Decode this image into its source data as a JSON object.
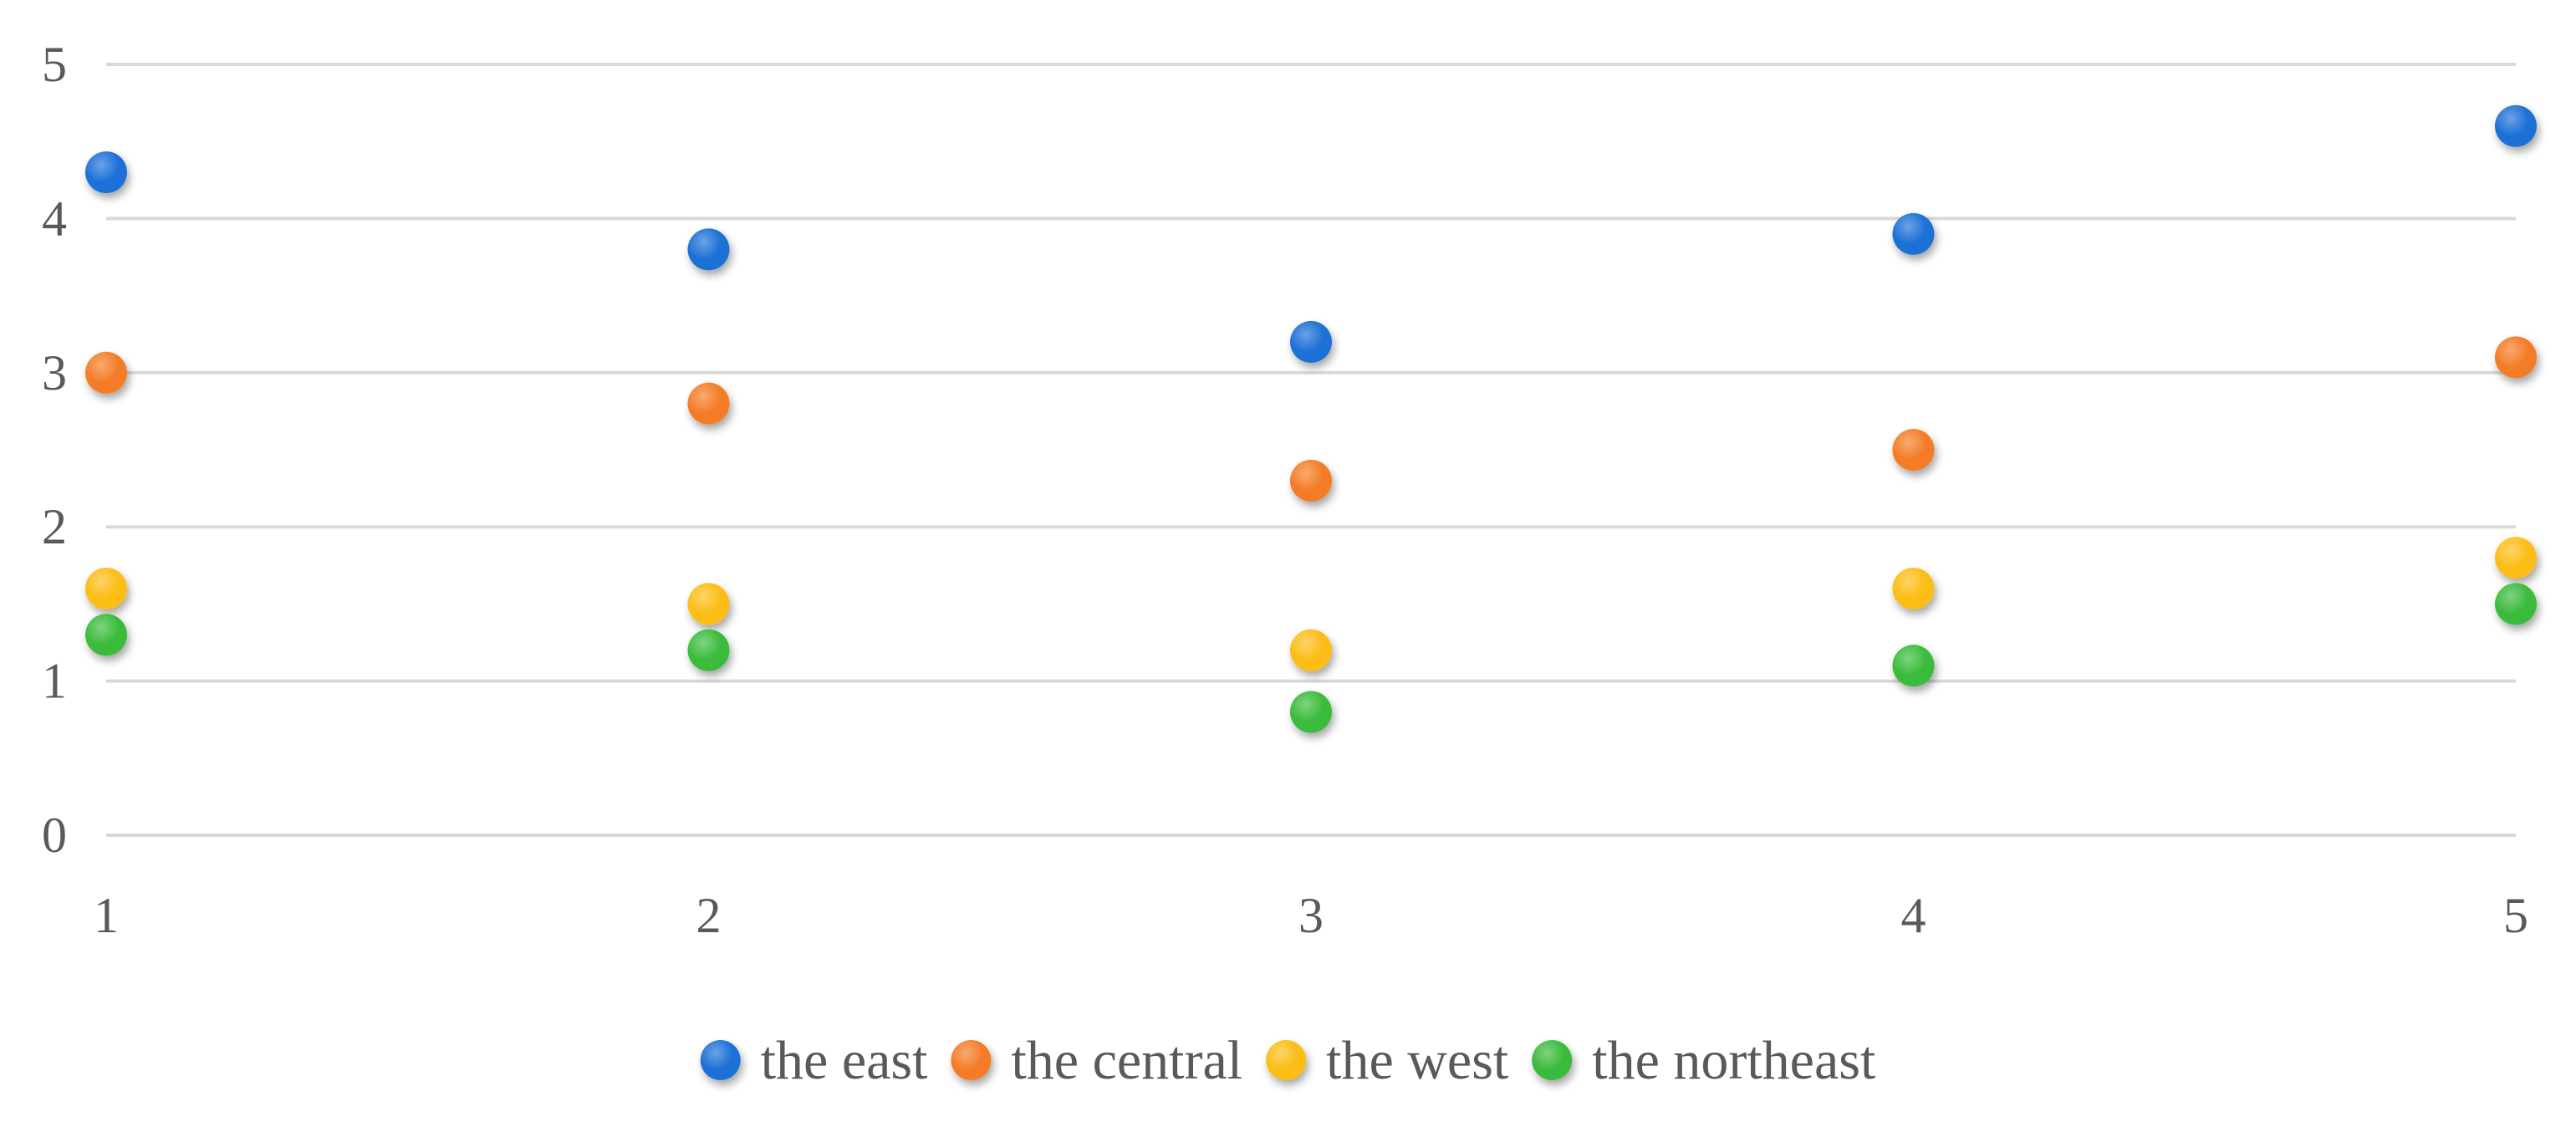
{
  "chart_data": {
    "type": "scatter",
    "x": [
      1,
      2,
      3,
      4,
      5
    ],
    "xticks": [
      "1",
      "2",
      "3",
      "4",
      "5"
    ],
    "yticks": [
      "0",
      "1",
      "2",
      "3",
      "4",
      "5"
    ],
    "xlim": [
      1,
      5
    ],
    "ylim": [
      0,
      5
    ],
    "grid": "horizontal",
    "legend_position": "bottom",
    "series": [
      {
        "name": "the east",
        "color": "#1f6fd6",
        "values": [
          4.3,
          3.8,
          3.2,
          3.9,
          4.6
        ]
      },
      {
        "name": "the central",
        "color": "#f47c25",
        "values": [
          3.0,
          2.8,
          2.3,
          2.5,
          3.1
        ]
      },
      {
        "name": "the west",
        "color": "#fbbd12",
        "values": [
          1.6,
          1.5,
          1.2,
          1.6,
          1.8
        ]
      },
      {
        "name": "the northeast",
        "color": "#3bbb3b",
        "values": [
          1.3,
          1.2,
          0.8,
          1.1,
          1.5
        ]
      }
    ]
  }
}
